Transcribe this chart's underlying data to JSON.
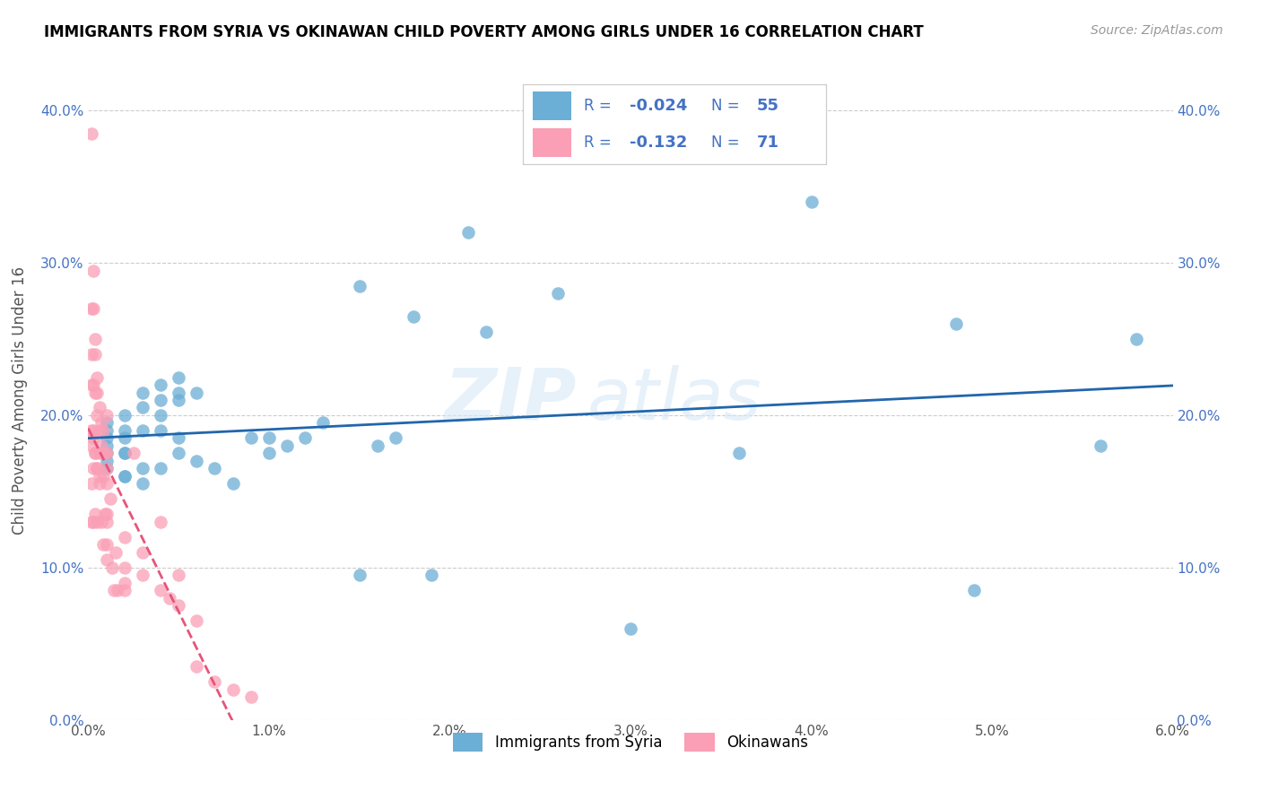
{
  "title": "IMMIGRANTS FROM SYRIA VS OKINAWAN CHILD POVERTY AMONG GIRLS UNDER 16 CORRELATION CHART",
  "source": "Source: ZipAtlas.com",
  "ylabel": "Child Poverty Among Girls Under 16",
  "xlim": [
    0.0,
    0.06
  ],
  "ylim": [
    0.0,
    0.42
  ],
  "xticks": [
    0.0,
    0.01,
    0.02,
    0.03,
    0.04,
    0.05,
    0.06
  ],
  "xticklabels": [
    "0.0%",
    "1.0%",
    "2.0%",
    "3.0%",
    "4.0%",
    "5.0%",
    "6.0%"
  ],
  "yticks": [
    0.0,
    0.1,
    0.2,
    0.3,
    0.4
  ],
  "yticklabels": [
    "0.0%",
    "10.0%",
    "20.0%",
    "30.0%",
    "40.0%"
  ],
  "legend1_label": "Immigrants from Syria",
  "legend2_label": "Okinawans",
  "r1": "-0.024",
  "n1": "55",
  "r2": "-0.132",
  "n2": "71",
  "blue_color": "#6baed6",
  "pink_color": "#fa9fb5",
  "blue_line_color": "#2166ac",
  "pink_line_color": "#e8537a",
  "watermark_zip": "ZIP",
  "watermark_atlas": "atlas",
  "syria_x": [
    0.001,
    0.001,
    0.001,
    0.001,
    0.001,
    0.002,
    0.002,
    0.002,
    0.002,
    0.002,
    0.003,
    0.003,
    0.003,
    0.004,
    0.004,
    0.004,
    0.005,
    0.005,
    0.005,
    0.005,
    0.006,
    0.006,
    0.007,
    0.008,
    0.009,
    0.01,
    0.01,
    0.011,
    0.012,
    0.013,
    0.015,
    0.015,
    0.016,
    0.017,
    0.018,
    0.019,
    0.021,
    0.022,
    0.026,
    0.03,
    0.036,
    0.04,
    0.048,
    0.049,
    0.056,
    0.058,
    0.003,
    0.004,
    0.005,
    0.002,
    0.001,
    0.001,
    0.002,
    0.003,
    0.004
  ],
  "syria_y": [
    0.195,
    0.19,
    0.18,
    0.17,
    0.165,
    0.2,
    0.19,
    0.185,
    0.175,
    0.16,
    0.215,
    0.205,
    0.155,
    0.22,
    0.2,
    0.165,
    0.225,
    0.215,
    0.185,
    0.175,
    0.215,
    0.17,
    0.165,
    0.155,
    0.185,
    0.175,
    0.185,
    0.18,
    0.185,
    0.195,
    0.285,
    0.095,
    0.18,
    0.185,
    0.265,
    0.095,
    0.32,
    0.255,
    0.28,
    0.06,
    0.175,
    0.34,
    0.26,
    0.085,
    0.18,
    0.25,
    0.19,
    0.21,
    0.21,
    0.16,
    0.185,
    0.175,
    0.175,
    0.165,
    0.19
  ],
  "okinawa_x": [
    0.0002,
    0.0002,
    0.0002,
    0.0002,
    0.0002,
    0.0002,
    0.0002,
    0.0003,
    0.0003,
    0.0003,
    0.0003,
    0.0003,
    0.0003,
    0.0004,
    0.0004,
    0.0004,
    0.0004,
    0.0004,
    0.0005,
    0.0005,
    0.0005,
    0.0005,
    0.0005,
    0.0006,
    0.0006,
    0.0006,
    0.0006,
    0.0007,
    0.0007,
    0.0007,
    0.0008,
    0.0008,
    0.0008,
    0.0008,
    0.0009,
    0.0009,
    0.001,
    0.001,
    0.001,
    0.001,
    0.001,
    0.001,
    0.001,
    0.0012,
    0.0013,
    0.0014,
    0.0015,
    0.0016,
    0.002,
    0.002,
    0.002,
    0.0025,
    0.003,
    0.003,
    0.004,
    0.004,
    0.0045,
    0.005,
    0.005,
    0.006,
    0.006,
    0.007,
    0.008,
    0.009,
    0.0002,
    0.0003,
    0.0004,
    0.0005,
    0.0006,
    0.001,
    0.002
  ],
  "okinawa_y": [
    0.385,
    0.27,
    0.24,
    0.22,
    0.19,
    0.155,
    0.13,
    0.295,
    0.27,
    0.22,
    0.185,
    0.165,
    0.13,
    0.25,
    0.24,
    0.215,
    0.175,
    0.135,
    0.225,
    0.215,
    0.2,
    0.165,
    0.13,
    0.205,
    0.19,
    0.175,
    0.155,
    0.195,
    0.18,
    0.13,
    0.19,
    0.175,
    0.16,
    0.115,
    0.175,
    0.135,
    0.2,
    0.175,
    0.165,
    0.155,
    0.135,
    0.115,
    0.105,
    0.145,
    0.1,
    0.085,
    0.11,
    0.085,
    0.1,
    0.12,
    0.085,
    0.175,
    0.11,
    0.095,
    0.085,
    0.13,
    0.08,
    0.095,
    0.075,
    0.065,
    0.035,
    0.025,
    0.02,
    0.015,
    0.18,
    0.19,
    0.175,
    0.165,
    0.16,
    0.13,
    0.09
  ]
}
